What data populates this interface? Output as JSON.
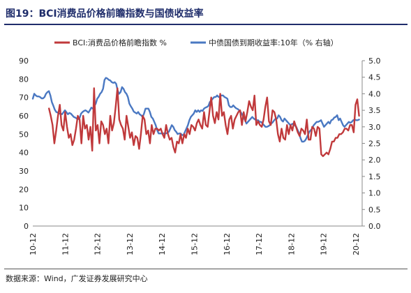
{
  "figure": {
    "title": "图19：BCI消费品价格前瞻指数与国债收益率",
    "source": "数据来源：Wind，广发证券发展研究中心"
  },
  "colors": {
    "bci": "#c0393b",
    "yield": "#4a78c2",
    "title": "#1f2d6b"
  },
  "chart_data": {
    "type": "line",
    "title": "",
    "grid": false,
    "legend_position": "top",
    "x_tick_labels": [
      "10-12",
      "11-12",
      "12-12",
      "13-12",
      "14-12",
      "15-12",
      "16-12",
      "17-12",
      "18-12",
      "19-12",
      "20-12"
    ],
    "y_left": {
      "min": 0,
      "max": 90,
      "step": 10,
      "ticks": [
        "0",
        "10",
        "20",
        "30",
        "40",
        "50",
        "60",
        "70",
        "80",
        "90"
      ]
    },
    "y_right": {
      "min": 0.0,
      "max": 5.0,
      "step": 0.5,
      "ticks": [
        "0.0",
        "0.5",
        "1.0",
        "1.5",
        "2.0",
        "2.5",
        "3.0",
        "3.5",
        "4.0",
        "4.5",
        "5.0"
      ]
    },
    "series": [
      {
        "name": "BCI:消费品价格前瞻指数 %",
        "axis": "left",
        "start": "2011-06",
        "values": [
          64,
          60,
          55,
          45,
          52,
          60,
          66,
          55,
          52,
          62,
          54,
          48,
          50,
          44,
          47,
          53,
          60,
          58,
          45,
          60,
          53,
          55,
          47,
          54,
          41,
          75,
          52,
          55,
          45,
          57,
          55,
          50,
          53,
          45,
          60,
          52,
          56,
          65,
          75,
          58,
          55,
          53,
          47,
          60,
          54,
          48,
          51,
          44,
          49,
          48,
          42,
          50,
          60,
          58,
          50,
          52,
          45,
          55,
          50,
          53,
          53,
          52,
          53,
          50,
          48,
          55,
          50,
          47,
          48,
          43,
          40,
          46,
          45,
          50,
          45,
          50,
          48,
          53,
          50,
          55,
          54,
          52,
          56,
          58,
          55,
          53,
          62,
          55,
          54,
          62,
          70,
          60,
          56,
          62,
          58,
          72,
          60,
          62,
          55,
          50,
          58,
          60,
          53,
          58,
          60,
          62,
          63,
          55,
          62,
          57,
          62,
          68,
          65,
          63,
          71,
          55,
          57,
          55,
          54,
          58,
          65,
          70,
          57,
          55,
          63,
          62,
          58,
          50,
          46,
          53,
          48,
          47,
          55,
          50,
          55,
          52,
          57,
          54,
          51,
          49,
          53,
          52,
          50,
          58,
          47,
          47,
          54,
          53,
          49,
          54,
          53,
          39,
          38,
          39,
          40,
          39,
          42,
          46,
          46,
          48,
          48,
          50,
          50,
          51,
          53,
          53,
          52,
          55,
          55,
          51,
          66,
          69,
          60
        ],
        "note": "first value at 2011-06 (axis label 11-12 marks 2011-12)"
      },
      {
        "name": "中债国债到期收益率:10年（% 右轴）",
        "axis": "right",
        "start": "2010-12",
        "values": [
          3.85,
          4.0,
          3.95,
          3.92,
          3.92,
          3.9,
          3.86,
          3.86,
          3.9,
          4.0,
          4.05,
          4.08,
          3.95,
          3.75,
          3.64,
          3.52,
          3.45,
          3.43,
          3.4,
          3.4,
          3.38,
          3.44,
          3.5,
          3.44,
          3.38,
          3.42,
          3.4,
          3.35,
          3.3,
          3.28,
          3.25,
          3.23,
          3.27,
          3.4,
          3.45,
          3.48,
          3.5,
          3.47,
          3.43,
          3.5,
          3.58,
          3.55,
          3.62,
          3.7,
          3.85,
          3.91,
          4.0,
          4.05,
          4.15,
          4.42,
          4.48,
          4.46,
          4.42,
          4.4,
          4.35,
          4.33,
          4.35,
          4.3,
          4.1,
          4.0,
          4.05,
          4.2,
          4.15,
          4.05,
          4.0,
          3.9,
          3.7,
          3.62,
          3.55,
          3.46,
          3.43,
          3.4,
          3.45,
          3.38,
          3.35,
          3.3,
          3.4,
          3.55,
          3.55,
          3.55,
          3.45,
          3.3,
          3.25,
          3.15,
          3.05,
          2.9,
          2.8,
          2.8,
          2.8,
          2.8,
          2.8,
          2.8,
          2.82,
          2.85,
          2.95,
          3.05,
          3.0,
          2.9,
          2.85,
          2.78,
          2.8,
          2.8,
          2.75,
          2.75,
          2.85,
          2.95,
          3.05,
          3.2,
          3.3,
          3.35,
          3.4,
          3.5,
          3.45,
          3.5,
          3.45,
          3.5,
          3.48,
          3.55,
          3.58,
          3.6,
          3.63,
          3.75,
          3.8,
          3.85,
          3.9,
          3.9,
          3.95,
          3.9,
          3.92,
          3.95,
          3.95,
          3.9,
          3.88,
          3.85,
          3.65,
          3.6,
          3.6,
          3.65,
          3.6,
          3.56,
          3.54,
          3.5,
          3.45,
          3.38,
          3.3,
          3.2,
          3.1,
          3.15,
          3.2,
          3.25,
          3.3,
          3.25,
          3.22,
          3.2,
          3.2,
          3.15,
          3.15,
          3.1,
          3.05,
          3.0,
          3.0,
          3.02,
          3.05,
          3.1,
          3.14,
          3.2,
          3.25,
          3.25,
          3.35,
          3.3,
          3.2,
          3.16,
          3.25,
          3.2,
          3.15,
          3.1,
          3.05,
          3.08,
          3.1,
          3.05,
          3.0,
          2.9,
          2.8,
          2.65,
          2.55,
          2.55,
          2.58,
          2.65,
          2.75,
          2.85,
          2.9,
          2.95,
          3.05,
          3.1,
          3.15,
          3.15,
          3.17,
          3.2,
          3.1,
          3.0,
          3.05,
          3.1,
          3.15,
          3.1,
          3.2,
          3.22,
          3.28,
          3.3,
          3.35,
          3.2,
          3.25,
          3.15,
          3.05,
          3.0,
          3.05,
          3.1,
          3.15,
          3.12,
          3.15,
          3.2,
          3.22,
          3.2,
          3.2,
          3.22
        ]
      }
    ]
  }
}
